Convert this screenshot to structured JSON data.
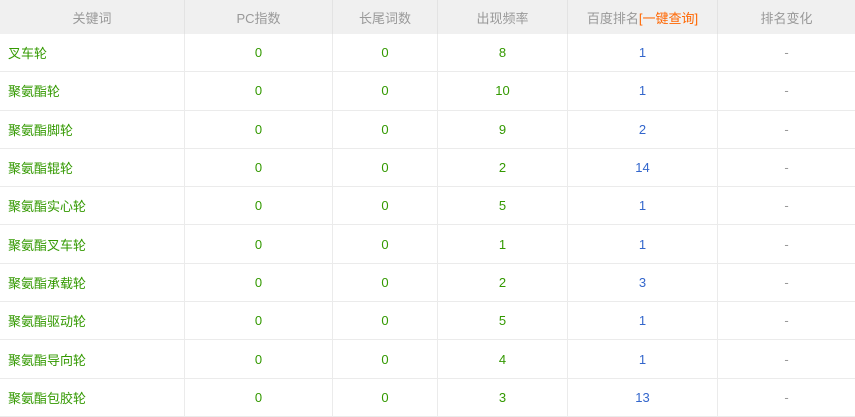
{
  "table": {
    "columns": [
      {
        "label": "关键词"
      },
      {
        "label": "PC指数"
      },
      {
        "label": "长尾词数"
      },
      {
        "label": "出现频率"
      },
      {
        "label": "百度排名",
        "action_label": "[一键查询]"
      },
      {
        "label": "排名变化"
      }
    ],
    "rows": [
      {
        "keyword": "叉车轮",
        "pc_index": "0",
        "longtail_count": "0",
        "frequency": "8",
        "baidu_rank": "1",
        "rank_change": "-"
      },
      {
        "keyword": "聚氨酯轮",
        "pc_index": "0",
        "longtail_count": "0",
        "frequency": "10",
        "baidu_rank": "1",
        "rank_change": "-"
      },
      {
        "keyword": "聚氨酯脚轮",
        "pc_index": "0",
        "longtail_count": "0",
        "frequency": "9",
        "baidu_rank": "2",
        "rank_change": "-"
      },
      {
        "keyword": "聚氨酯辊轮",
        "pc_index": "0",
        "longtail_count": "0",
        "frequency": "2",
        "baidu_rank": "14",
        "rank_change": "-"
      },
      {
        "keyword": "聚氨酯实心轮",
        "pc_index": "0",
        "longtail_count": "0",
        "frequency": "5",
        "baidu_rank": "1",
        "rank_change": "-"
      },
      {
        "keyword": "聚氨酯叉车轮",
        "pc_index": "0",
        "longtail_count": "0",
        "frequency": "1",
        "baidu_rank": "1",
        "rank_change": "-"
      },
      {
        "keyword": "聚氨酯承载轮",
        "pc_index": "0",
        "longtail_count": "0",
        "frequency": "2",
        "baidu_rank": "3",
        "rank_change": "-"
      },
      {
        "keyword": "聚氨酯驱动轮",
        "pc_index": "0",
        "longtail_count": "0",
        "frequency": "5",
        "baidu_rank": "1",
        "rank_change": "-"
      },
      {
        "keyword": "聚氨酯导向轮",
        "pc_index": "0",
        "longtail_count": "0",
        "frequency": "4",
        "baidu_rank": "1",
        "rank_change": "-"
      },
      {
        "keyword": "聚氨酯包胶轮",
        "pc_index": "0",
        "longtail_count": "0",
        "frequency": "3",
        "baidu_rank": "13",
        "rank_change": "-"
      }
    ]
  },
  "colors": {
    "header_bg": "#f0f0f0",
    "header_text": "#999999",
    "keyword_green": "#339900",
    "rank_blue": "#3366cc",
    "action_orange": "#ff6600",
    "row_border": "#ebebeb",
    "header_border": "#e3e3e3",
    "dash_gray": "#999999"
  }
}
